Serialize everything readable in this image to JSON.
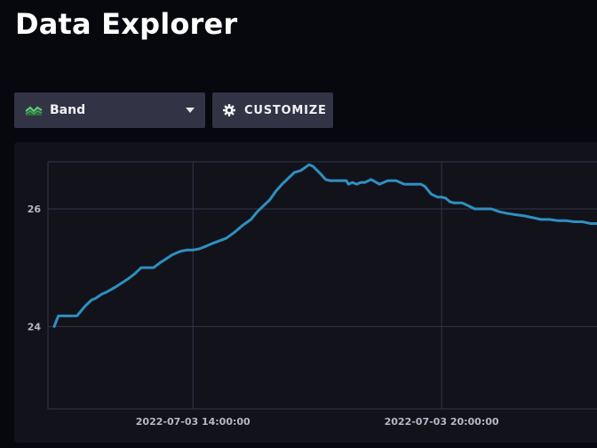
{
  "page": {
    "title": "Data Explorer"
  },
  "toolbar": {
    "viz_type": {
      "label": "Band",
      "icon": "band-chart-icon"
    },
    "customize": {
      "label": "CUSTOMIZE",
      "icon": "gear-icon"
    }
  },
  "colors": {
    "background": "#07080d",
    "panel": "#12121b",
    "button": "#333346",
    "series": "#2f8fc0",
    "grid": "#33354a",
    "icon_green": "#4ea763"
  },
  "chart_data": {
    "type": "line",
    "title": "",
    "xlabel": "",
    "ylabel": "",
    "x_ticks": [
      "2022-07-03 14:00:00",
      "2022-07-03 20:00:00"
    ],
    "y_ticks": [
      "24",
      "26"
    ],
    "ylim": [
      22.6,
      26.8
    ],
    "x_range_hours": [
      10.5,
      23.75
    ],
    "grid": true,
    "legend": "none",
    "series": [
      {
        "x": [
          10.65,
          10.75,
          10.85,
          11.0,
          11.2,
          11.4,
          11.55,
          11.65,
          11.8,
          11.9,
          12.0,
          12.15,
          12.3,
          12.45,
          12.6,
          12.75,
          12.9,
          13.05,
          13.2,
          13.35,
          13.5,
          13.7,
          13.85,
          14.0,
          14.15,
          14.3,
          14.5,
          14.65,
          14.8,
          15.0,
          15.2,
          15.4,
          15.55,
          15.7,
          15.85,
          16.0,
          16.15,
          16.3,
          16.45,
          16.6,
          16.7,
          16.8,
          16.9,
          17.0,
          17.1,
          17.2,
          17.3,
          17.4,
          17.5,
          17.6,
          17.7,
          17.75,
          17.85,
          17.95,
          18.05,
          18.15,
          18.3,
          18.5,
          18.7,
          18.9,
          19.1,
          19.2,
          19.3,
          19.4,
          19.5,
          19.6,
          19.75,
          19.9,
          20.0,
          20.1,
          20.2,
          20.3,
          20.4,
          20.5,
          20.65,
          20.8,
          21.0,
          21.2,
          21.4,
          21.6,
          21.8,
          22.0,
          22.2,
          22.4,
          22.6,
          22.8,
          23.0,
          23.2,
          23.4,
          23.6,
          23.75
        ],
        "y": [
          24.0,
          24.18,
          24.18,
          24.18,
          24.18,
          24.35,
          24.45,
          24.48,
          24.55,
          24.58,
          24.62,
          24.68,
          24.75,
          24.82,
          24.9,
          25.0,
          25.0,
          25.0,
          25.08,
          25.15,
          25.22,
          25.28,
          25.3,
          25.3,
          25.32,
          25.36,
          25.42,
          25.46,
          25.5,
          25.6,
          25.72,
          25.82,
          25.95,
          26.05,
          26.15,
          26.3,
          26.42,
          26.52,
          26.62,
          26.65,
          26.7,
          26.75,
          26.72,
          26.65,
          26.58,
          26.5,
          26.48,
          26.48,
          26.48,
          26.48,
          26.48,
          26.42,
          26.45,
          26.42,
          26.45,
          26.45,
          26.5,
          26.42,
          26.48,
          26.48,
          26.42,
          26.42,
          26.42,
          26.42,
          26.42,
          26.38,
          26.25,
          26.2,
          26.2,
          26.18,
          26.12,
          26.1,
          26.1,
          26.1,
          26.05,
          26.0,
          26.0,
          26.0,
          25.95,
          25.92,
          25.9,
          25.88,
          25.85,
          25.82,
          25.82,
          25.8,
          25.8,
          25.78,
          25.78,
          25.75,
          25.75
        ]
      }
    ]
  }
}
